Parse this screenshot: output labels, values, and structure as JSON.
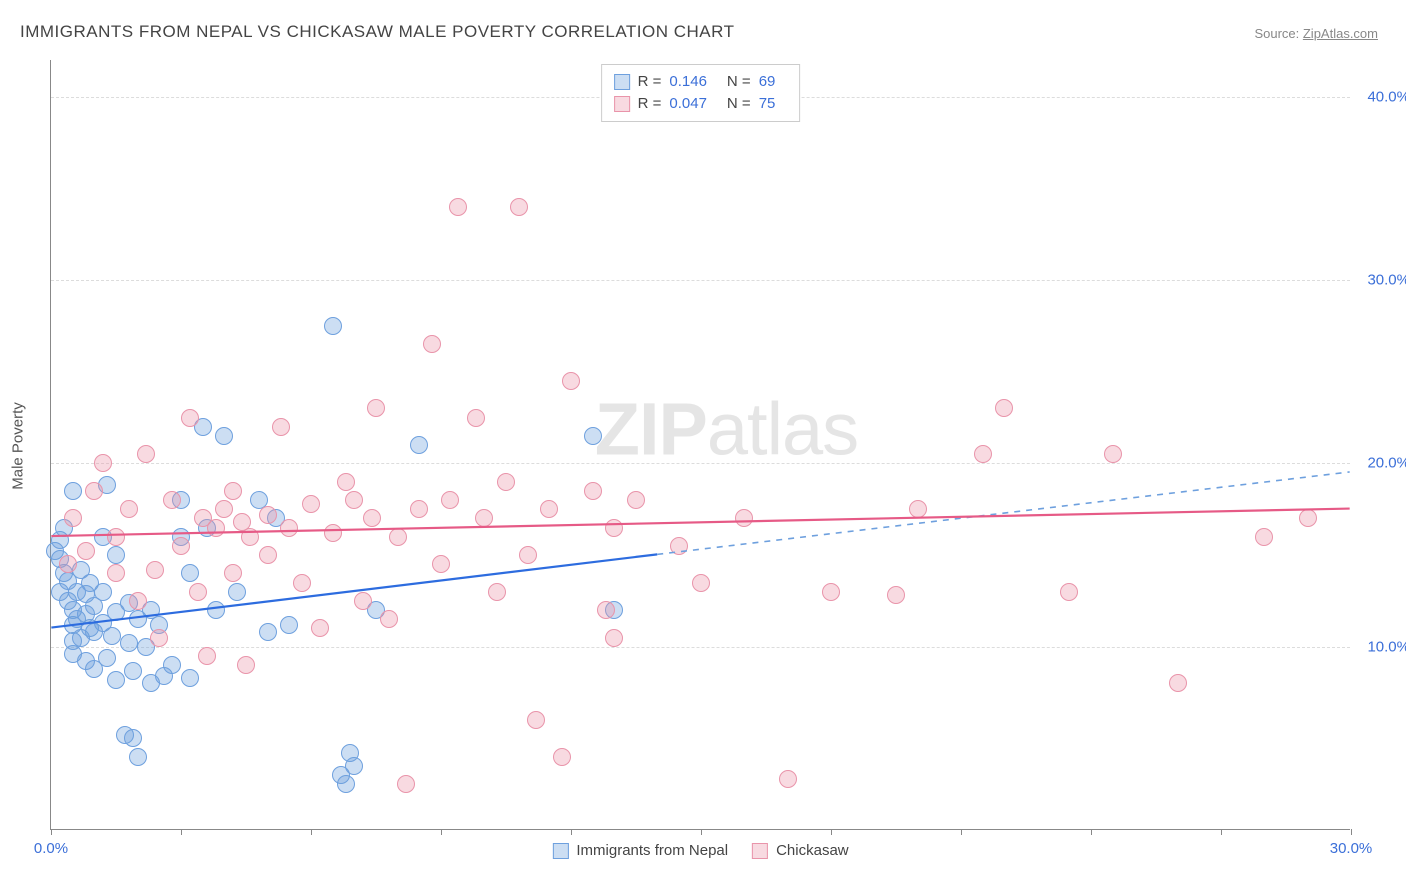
{
  "title": "IMMIGRANTS FROM NEPAL VS CHICKASAW MALE POVERTY CORRELATION CHART",
  "source_label": "Source: ",
  "source_value": "ZipAtlas.com",
  "y_axis_label": "Male Poverty",
  "watermark_bold": "ZIP",
  "watermark_rest": "atlas",
  "chart": {
    "type": "scatter",
    "xlim": [
      0,
      30
    ],
    "ylim": [
      0,
      42
    ],
    "x_ticks_major": [
      0,
      30
    ],
    "x_ticks_minor": [
      3,
      6,
      9,
      12,
      15,
      18,
      21,
      24,
      27
    ],
    "y_ticks": [
      10,
      20,
      30,
      40
    ],
    "y_tick_labels": [
      "10.0%",
      "20.0%",
      "30.0%",
      "40.0%"
    ],
    "x_tick_labels": [
      "0.0%",
      "30.0%"
    ],
    "background_color": "#ffffff",
    "grid_color": "#dcdcdc",
    "axis_color": "#888888",
    "tick_label_color": "#3b6fd8",
    "marker_radius": 9,
    "series": [
      {
        "name": "Immigrants from Nepal",
        "fill": "rgba(110,160,222,0.35)",
        "stroke": "#6ea0de",
        "line_color": "#2d6cdf",
        "dash_color": "#6ea0de",
        "R": "0.146",
        "N": "69",
        "trend": {
          "x1": 0,
          "y1": 11.0,
          "x2": 14,
          "y2": 15.0,
          "x3": 30,
          "y3": 19.5
        },
        "points": [
          [
            0.1,
            15.2
          ],
          [
            0.2,
            14.8
          ],
          [
            0.2,
            13.0
          ],
          [
            0.2,
            15.8
          ],
          [
            0.3,
            14.0
          ],
          [
            0.3,
            16.5
          ],
          [
            0.4,
            12.5
          ],
          [
            0.4,
            13.6
          ],
          [
            0.5,
            11.2
          ],
          [
            0.5,
            12.0
          ],
          [
            0.5,
            10.3
          ],
          [
            0.5,
            9.6
          ],
          [
            0.5,
            18.5
          ],
          [
            0.6,
            13.0
          ],
          [
            0.6,
            11.5
          ],
          [
            0.7,
            14.2
          ],
          [
            0.7,
            10.5
          ],
          [
            0.8,
            11.8
          ],
          [
            0.8,
            9.2
          ],
          [
            0.8,
            12.9
          ],
          [
            0.9,
            11.0
          ],
          [
            0.9,
            13.5
          ],
          [
            1.0,
            10.8
          ],
          [
            1.0,
            12.2
          ],
          [
            1.0,
            8.8
          ],
          [
            1.2,
            11.3
          ],
          [
            1.2,
            13.0
          ],
          [
            1.2,
            16.0
          ],
          [
            1.3,
            9.4
          ],
          [
            1.3,
            18.8
          ],
          [
            1.4,
            10.6
          ],
          [
            1.5,
            11.9
          ],
          [
            1.5,
            8.2
          ],
          [
            1.5,
            15.0
          ],
          [
            1.7,
            5.2
          ],
          [
            1.8,
            10.2
          ],
          [
            1.8,
            12.4
          ],
          [
            1.9,
            8.7
          ],
          [
            1.9,
            5.0
          ],
          [
            2.0,
            11.5
          ],
          [
            2.0,
            4.0
          ],
          [
            2.2,
            10.0
          ],
          [
            2.3,
            8.0
          ],
          [
            2.3,
            12.0
          ],
          [
            2.5,
            11.2
          ],
          [
            2.6,
            8.4
          ],
          [
            2.8,
            9.0
          ],
          [
            3.0,
            16.0
          ],
          [
            3.0,
            18.0
          ],
          [
            3.2,
            8.3
          ],
          [
            3.2,
            14.0
          ],
          [
            3.5,
            22.0
          ],
          [
            3.6,
            16.5
          ],
          [
            3.8,
            12.0
          ],
          [
            4.0,
            21.5
          ],
          [
            4.3,
            13.0
          ],
          [
            4.8,
            18.0
          ],
          [
            5.0,
            10.8
          ],
          [
            5.2,
            17.0
          ],
          [
            5.5,
            11.2
          ],
          [
            6.5,
            27.5
          ],
          [
            6.7,
            3.0
          ],
          [
            6.8,
            2.5
          ],
          [
            6.9,
            4.2
          ],
          [
            7.0,
            3.5
          ],
          [
            7.5,
            12.0
          ],
          [
            8.5,
            21.0
          ],
          [
            12.5,
            21.5
          ],
          [
            13.0,
            12.0
          ]
        ]
      },
      {
        "name": "Chickasaw",
        "fill": "rgba(235,150,170,0.35)",
        "stroke": "#e994aa",
        "line_color": "#e65a86",
        "dash_color": "#e994aa",
        "R": "0.047",
        "N": "75",
        "trend": {
          "x1": 0,
          "y1": 16.0,
          "x2": 30,
          "y2": 17.5,
          "x3": 30,
          "y3": 17.5
        },
        "points": [
          [
            0.4,
            14.5
          ],
          [
            0.5,
            17.0
          ],
          [
            0.8,
            15.2
          ],
          [
            1.0,
            18.5
          ],
          [
            1.2,
            20.0
          ],
          [
            1.5,
            16.0
          ],
          [
            1.5,
            14.0
          ],
          [
            1.8,
            17.5
          ],
          [
            2.0,
            12.5
          ],
          [
            2.2,
            20.5
          ],
          [
            2.4,
            14.2
          ],
          [
            2.5,
            10.5
          ],
          [
            2.8,
            18.0
          ],
          [
            3.0,
            15.5
          ],
          [
            3.2,
            22.5
          ],
          [
            3.4,
            13.0
          ],
          [
            3.5,
            17.0
          ],
          [
            3.6,
            9.5
          ],
          [
            3.8,
            16.5
          ],
          [
            4.0,
            17.5
          ],
          [
            4.2,
            18.5
          ],
          [
            4.2,
            14.0
          ],
          [
            4.4,
            16.8
          ],
          [
            4.5,
            9.0
          ],
          [
            4.6,
            16.0
          ],
          [
            5.0,
            17.2
          ],
          [
            5.0,
            15.0
          ],
          [
            5.3,
            22.0
          ],
          [
            5.5,
            16.5
          ],
          [
            5.8,
            13.5
          ],
          [
            6.0,
            17.8
          ],
          [
            6.2,
            11.0
          ],
          [
            6.5,
            16.2
          ],
          [
            6.8,
            19.0
          ],
          [
            7.0,
            18.0
          ],
          [
            7.2,
            12.5
          ],
          [
            7.4,
            17.0
          ],
          [
            7.5,
            23.0
          ],
          [
            7.8,
            11.5
          ],
          [
            8.0,
            16.0
          ],
          [
            8.2,
            2.5
          ],
          [
            8.5,
            17.5
          ],
          [
            8.8,
            26.5
          ],
          [
            9.0,
            14.5
          ],
          [
            9.2,
            18.0
          ],
          [
            9.4,
            34.0
          ],
          [
            9.8,
            22.5
          ],
          [
            10.0,
            17.0
          ],
          [
            10.3,
            13.0
          ],
          [
            10.5,
            19.0
          ],
          [
            10.8,
            34.0
          ],
          [
            11.0,
            15.0
          ],
          [
            11.2,
            6.0
          ],
          [
            11.5,
            17.5
          ],
          [
            11.8,
            4.0
          ],
          [
            12.0,
            24.5
          ],
          [
            12.5,
            18.5
          ],
          [
            12.8,
            12.0
          ],
          [
            13.0,
            16.5
          ],
          [
            13.0,
            10.5
          ],
          [
            13.5,
            18.0
          ],
          [
            14.5,
            15.5
          ],
          [
            15.0,
            13.5
          ],
          [
            16.0,
            17.0
          ],
          [
            17.0,
            2.8
          ],
          [
            18.0,
            13.0
          ],
          [
            19.5,
            12.8
          ],
          [
            20.0,
            17.5
          ],
          [
            21.5,
            20.5
          ],
          [
            22.0,
            23.0
          ],
          [
            23.5,
            13.0
          ],
          [
            24.5,
            20.5
          ],
          [
            26.0,
            8.0
          ],
          [
            28.0,
            16.0
          ],
          [
            29.0,
            17.0
          ]
        ]
      }
    ]
  },
  "legend_top": {
    "R_label": "R =",
    "N_label": "N ="
  }
}
